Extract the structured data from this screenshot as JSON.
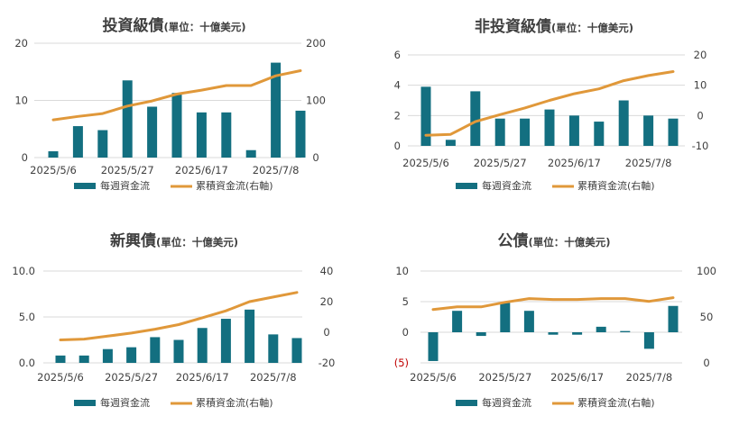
{
  "colors": {
    "bar": "#136f80",
    "line": "#e0983a",
    "text": "#404040",
    "negative_tick": "#c00000",
    "grid": "#d9d9d9"
  },
  "legend": {
    "bar_label": "每週資金流",
    "line_label": "累積資金流(右軸)"
  },
  "chart_data": [
    {
      "type": "bar",
      "title": "投資級債",
      "subtitle": "(單位：十億美元)",
      "x_tick_labels": [
        "2025/5/6",
        "2025/5/27",
        "2025/6/17",
        "2025/7/8"
      ],
      "y_left": {
        "ylim": [
          0,
          20
        ],
        "ticks": [
          0,
          10,
          20
        ],
        "tick_labels": [
          "0",
          "10",
          "20"
        ]
      },
      "y_right": {
        "ylim": [
          0,
          200
        ],
        "ticks": [
          0,
          100,
          200
        ],
        "tick_labels": [
          "0",
          "100",
          "200"
        ]
      },
      "series": [
        {
          "name": "每週資金流",
          "axis": "left",
          "values": [
            1.1,
            5.5,
            4.8,
            13.5,
            8.9,
            11.3,
            7.9,
            7.9,
            1.3,
            16.6,
            8.2
          ]
        },
        {
          "name": "累積資金流(右軸)",
          "axis": "right",
          "values": [
            66,
            72,
            77,
            90,
            99,
            111,
            118,
            126,
            126,
            143,
            152
          ]
        }
      ]
    },
    {
      "type": "bar",
      "title": "非投資級債",
      "subtitle": "(單位：十億美元)",
      "x_tick_labels": [
        "2025/5/6",
        "2025/5/27",
        "2025/6/17",
        "2025/7/8"
      ],
      "y_left": {
        "ylim": [
          0,
          6
        ],
        "ticks": [
          0,
          2,
          4,
          6
        ],
        "tick_labels": [
          "0",
          "2",
          "4",
          "6"
        ]
      },
      "y_right": {
        "ylim": [
          -10,
          20
        ],
        "ticks": [
          -10,
          0,
          10,
          20
        ],
        "tick_labels": [
          "-10",
          "0",
          "10",
          "20"
        ]
      },
      "series": [
        {
          "name": "每週資金流",
          "axis": "left",
          "values": [
            3.9,
            0.4,
            3.6,
            1.8,
            1.8,
            2.4,
            2.0,
            1.6,
            3.0,
            2.0,
            1.8
          ]
        },
        {
          "name": "累積資金流(右軸)",
          "axis": "right",
          "values": [
            -6.5,
            -6.2,
            -2.0,
            0.3,
            2.5,
            5.0,
            7.2,
            8.8,
            11.5,
            13.2,
            14.5
          ]
        }
      ]
    },
    {
      "type": "bar",
      "title": "新興債",
      "subtitle": "(單位：十億美元)",
      "x_tick_labels": [
        "2025/5/6",
        "2025/5/27",
        "2025/6/17",
        "2025/7/8"
      ],
      "y_left": {
        "ylim": [
          0,
          10
        ],
        "ticks": [
          0,
          5,
          10
        ],
        "tick_labels": [
          "0.0",
          "5.0",
          "10.0"
        ]
      },
      "y_right": {
        "ylim": [
          -20,
          40
        ],
        "ticks": [
          -20,
          0,
          20,
          40
        ],
        "tick_labels": [
          "-20",
          "0",
          "20",
          "40"
        ]
      },
      "series": [
        {
          "name": "每週資金流",
          "axis": "left",
          "values": [
            0.8,
            0.8,
            1.5,
            1.7,
            2.8,
            2.5,
            3.8,
            4.8,
            5.8,
            3.1,
            2.7
          ]
        },
        {
          "name": "累積資金流(右軸)",
          "axis": "right",
          "values": [
            -5,
            -4.5,
            -2.5,
            -0.5,
            2,
            5,
            9.5,
            14,
            20,
            23,
            26
          ]
        }
      ]
    },
    {
      "type": "bar",
      "title": "公債",
      "subtitle": "(單位：十億美元)",
      "x_tick_labels": [
        "2025/5/6",
        "2025/5/27",
        "2025/6/17",
        "2025/7/8"
      ],
      "y_left": {
        "ylim": [
          -5,
          10
        ],
        "ticks": [
          -5,
          0,
          5,
          10
        ],
        "tick_labels": [
          "(5)",
          "0",
          "5",
          "10"
        ]
      },
      "y_right": {
        "ylim": [
          0,
          100
        ],
        "ticks": [
          0,
          50,
          100
        ],
        "tick_labels": [
          "0",
          "50",
          "100"
        ]
      },
      "series": [
        {
          "name": "每週資金流",
          "axis": "left",
          "values": [
            -4.7,
            3.5,
            -0.6,
            4.8,
            3.5,
            -0.4,
            -0.4,
            0.9,
            0.2,
            -2.7,
            4.3
          ]
        },
        {
          "name": "累積資金流(右軸)",
          "axis": "right",
          "values": [
            58,
            61,
            61,
            66,
            70,
            69,
            69,
            70,
            70,
            67,
            71
          ]
        }
      ]
    }
  ]
}
